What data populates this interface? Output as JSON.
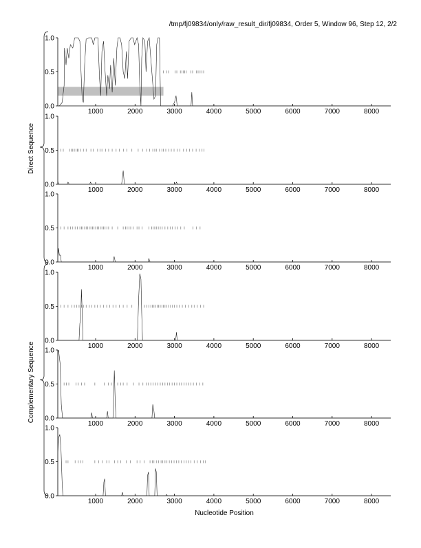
{
  "chart_data": {
    "type": "line",
    "title": "/tmp/fj09834/only/raw_result_dir/fj09834, Order 5, Window 96, Step 12, 2/2",
    "xlabel": "Nucleotide Position",
    "group_labels": [
      "Direct Sequence",
      "Complementary Sequence"
    ],
    "xlim": [
      0,
      8490
    ],
    "ylim": [
      0,
      1
    ],
    "x_ticks": [
      1000,
      2000,
      3000,
      4000,
      5000,
      6000,
      7000,
      8000
    ],
    "y_ticks": [
      "0.0",
      "0.5",
      "1.0"
    ],
    "panels": [
      {
        "group": "Direct Sequence",
        "frame": 1,
        "highlight": {
          "x": [
            0,
            2720
          ],
          "y": [
            0.15,
            0.28
          ]
        },
        "line": [
          [
            0,
            0
          ],
          [
            80,
            0
          ],
          [
            150,
            0.05
          ],
          [
            200,
            0.3
          ],
          [
            210,
            0.85
          ],
          [
            250,
            0.6
          ],
          [
            280,
            0.85
          ],
          [
            320,
            0.7
          ],
          [
            360,
            0.9
          ],
          [
            420,
            0.85
          ],
          [
            470,
            1
          ],
          [
            560,
            1
          ],
          [
            600,
            0.95
          ],
          [
            630,
            0.5
          ],
          [
            660,
            0.1
          ],
          [
            690,
            0.05
          ],
          [
            720,
            0.6
          ],
          [
            760,
            0.98
          ],
          [
            820,
            1
          ],
          [
            900,
            1
          ],
          [
            940,
            0.9
          ],
          [
            980,
            1
          ],
          [
            1060,
            1
          ],
          [
            1100,
            0.4
          ],
          [
            1130,
            0.15
          ],
          [
            1160,
            0.8
          ],
          [
            1200,
            0.95
          ],
          [
            1240,
            0.5
          ],
          [
            1280,
            0.15
          ],
          [
            1310,
            0.45
          ],
          [
            1350,
            0.25
          ],
          [
            1380,
            0.6
          ],
          [
            1420,
            0.2
          ],
          [
            1460,
            0.7
          ],
          [
            1500,
            0.3
          ],
          [
            1540,
            0.85
          ],
          [
            1570,
            1
          ],
          [
            1620,
            1
          ],
          [
            1660,
            0.9
          ],
          [
            1700,
            0.5
          ],
          [
            1740,
            0.4
          ],
          [
            1780,
            0.8
          ],
          [
            1810,
            0.4
          ],
          [
            1850,
            0.95
          ],
          [
            1900,
            1
          ],
          [
            1950,
            1
          ],
          [
            1990,
            0.9
          ],
          [
            2050,
            1
          ],
          [
            2090,
            0.9
          ],
          [
            2120,
            0.3
          ],
          [
            2150,
            0
          ],
          [
            2170,
            0.7
          ],
          [
            2200,
            1
          ],
          [
            2250,
            0.95
          ],
          [
            2280,
            0.5
          ],
          [
            2320,
            0.95
          ],
          [
            2360,
            1
          ],
          [
            2400,
            0.7
          ],
          [
            2440,
            0.4
          ],
          [
            2480,
            0.1
          ],
          [
            2520,
            0.15
          ],
          [
            2550,
            0.9
          ],
          [
            2580,
            1
          ],
          [
            2620,
            1
          ],
          [
            2650,
            0
          ],
          [
            2950,
            0
          ],
          [
            3000,
            0.05
          ],
          [
            3040,
            0.15
          ],
          [
            3070,
            0
          ],
          [
            3420,
            0
          ],
          [
            3440,
            0.2
          ],
          [
            3460,
            0
          ],
          [
            8490,
            0
          ]
        ],
        "orf_ticks": [
          2720,
          2800,
          2850,
          3020,
          3060,
          3150,
          3190,
          3230,
          3260,
          3300,
          3420,
          3460,
          3560,
          3600,
          3650,
          3700,
          3740
        ]
      },
      {
        "group": "Direct Sequence",
        "frame": 2,
        "line": [
          [
            0,
            0
          ],
          [
            30,
            0.05
          ],
          [
            60,
            0
          ],
          [
            280,
            0
          ],
          [
            300,
            0.03
          ],
          [
            330,
            0
          ],
          [
            850,
            0
          ],
          [
            870,
            0.03
          ],
          [
            900,
            0
          ],
          [
            1660,
            0
          ],
          [
            1700,
            0.2
          ],
          [
            1730,
            0
          ],
          [
            3030,
            0
          ],
          [
            3050,
            0.03
          ],
          [
            3080,
            0
          ],
          [
            8490,
            0
          ]
        ],
        "orf_ticks": [
          120,
          180,
          340,
          380,
          420,
          460,
          500,
          540,
          560,
          620,
          690,
          760,
          880,
          940,
          1050,
          1110,
          1160,
          1250,
          1330,
          1420,
          1520,
          1600,
          1710,
          1790,
          1920,
          2080,
          2190,
          2290,
          2370,
          2450,
          2500,
          2540,
          2620,
          2680,
          2720,
          2780,
          2860,
          2920,
          2990,
          3070,
          3140,
          3230,
          3310,
          3380,
          3460,
          3550,
          3630,
          3700,
          3750
        ]
      },
      {
        "group": "Direct Sequence",
        "frame": 3,
        "line": [
          [
            0,
            0
          ],
          [
            40,
            0.05
          ],
          [
            60,
            0.2
          ],
          [
            80,
            0.1
          ],
          [
            110,
            0.1
          ],
          [
            130,
            0
          ],
          [
            1440,
            0
          ],
          [
            1470,
            0.08
          ],
          [
            1500,
            0
          ],
          [
            2330,
            0
          ],
          [
            2350,
            0.05
          ],
          [
            2380,
            0
          ],
          [
            8490,
            0
          ]
        ],
        "orf_ticks": [
          120,
          200,
          300,
          360,
          420,
          480,
          540,
          600,
          640,
          680,
          720,
          760,
          800,
          840,
          880,
          920,
          960,
          1000,
          1040,
          1080,
          1120,
          1160,
          1200,
          1240,
          1290,
          1330,
          1420,
          1560,
          1700,
          1760,
          1800,
          1850,
          1890,
          1950,
          2050,
          2100,
          2180,
          2350,
          2420,
          2460,
          2500,
          2540,
          2590,
          2640,
          2690,
          2760,
          2830,
          2890,
          2950,
          3020,
          3080,
          3160,
          3250,
          3470,
          3560,
          3650
        ]
      },
      {
        "group": "Complementary Sequence",
        "frame": 1,
        "line": [
          [
            0,
            0
          ],
          [
            20,
            0.3
          ],
          [
            40,
            0
          ],
          [
            580,
            0
          ],
          [
            600,
            0.25
          ],
          [
            620,
            0.3
          ],
          [
            640,
            0.75
          ],
          [
            660,
            0.4
          ],
          [
            680,
            0
          ],
          [
            2060,
            0
          ],
          [
            2090,
            0.6
          ],
          [
            2120,
            0.98
          ],
          [
            2150,
            0.9
          ],
          [
            2170,
            0.4
          ],
          [
            2190,
            0
          ],
          [
            3030,
            0
          ],
          [
            3050,
            0.12
          ],
          [
            3070,
            0
          ],
          [
            8490,
            0
          ]
        ],
        "orf_ticks": [
          120,
          200,
          300,
          400,
          460,
          520,
          580,
          640,
          690,
          760,
          840,
          900,
          980,
          1040,
          1120,
          1200,
          1280,
          1360,
          1440,
          1520,
          1600,
          1700,
          1800,
          1920,
          2240,
          2300,
          2350,
          2400,
          2440,
          2480,
          2520,
          2560,
          2600,
          2640,
          2680,
          2720,
          2760,
          2800,
          2850,
          2900,
          2950,
          3000,
          3060,
          3120,
          3200,
          3280,
          3360,
          3440,
          3500,
          3580,
          3660,
          3740
        ]
      },
      {
        "group": "Complementary Sequence",
        "frame": 2,
        "line": [
          [
            0,
            0
          ],
          [
            20,
            0.95
          ],
          [
            60,
            1
          ],
          [
            100,
            0.8
          ],
          [
            130,
            0.2
          ],
          [
            160,
            0
          ],
          [
            880,
            0
          ],
          [
            900,
            0.08
          ],
          [
            920,
            0
          ],
          [
            1280,
            0
          ],
          [
            1300,
            0.1
          ],
          [
            1320,
            0
          ],
          [
            1440,
            0
          ],
          [
            1460,
            0.4
          ],
          [
            1475,
            0.7
          ],
          [
            1500,
            0.2
          ],
          [
            1520,
            0
          ],
          [
            2430,
            0
          ],
          [
            2450,
            0.2
          ],
          [
            2480,
            0.1
          ],
          [
            2500,
            0
          ],
          [
            8490,
            0
          ]
        ],
        "orf_ticks": [
          200,
          260,
          320,
          500,
          560,
          640,
          720,
          980,
          1220,
          1320,
          1400,
          1560,
          1640,
          1700,
          1800,
          1960,
          2100,
          2200,
          2280,
          2340,
          2400,
          2460,
          2520,
          2580,
          2640,
          2700,
          2760,
          2820,
          2880,
          2940,
          3000,
          3060,
          3120,
          3180,
          3240,
          3300,
          3360,
          3420,
          3480,
          3560,
          3640,
          3720
        ]
      },
      {
        "group": "Complementary Sequence",
        "frame": 3,
        "line": [
          [
            0,
            0
          ],
          [
            30,
            0.6
          ],
          [
            60,
            0.85
          ],
          [
            90,
            0.9
          ],
          [
            120,
            0.7
          ],
          [
            150,
            0.2
          ],
          [
            170,
            0
          ],
          [
            1190,
            0
          ],
          [
            1210,
            0.2
          ],
          [
            1230,
            0.25
          ],
          [
            1250,
            0
          ],
          [
            1660,
            0
          ],
          [
            1680,
            0.05
          ],
          [
            1700,
            0
          ],
          [
            2300,
            0
          ],
          [
            2320,
            0.3
          ],
          [
            2340,
            0.35
          ],
          [
            2360,
            0
          ],
          [
            2500,
            0
          ],
          [
            2520,
            0.4
          ],
          [
            2540,
            0.35
          ],
          [
            2560,
            0
          ],
          [
            2780,
            0
          ],
          [
            2800,
            0.02
          ],
          [
            2820,
            0
          ],
          [
            8490,
            0
          ]
        ],
        "orf_ticks": [
          250,
          300,
          480,
          560,
          620,
          680,
          980,
          1080,
          1170,
          1280,
          1340,
          1480,
          1560,
          1640,
          1780,
          1880,
          2050,
          2130,
          2230,
          2380,
          2440,
          2480,
          2540,
          2600,
          2660,
          2700,
          2760,
          2810,
          2870,
          2930,
          2990,
          3050,
          3110,
          3170,
          3240,
          3300,
          3360,
          3420,
          3500,
          3580,
          3660,
          3730,
          3780
        ]
      }
    ]
  }
}
